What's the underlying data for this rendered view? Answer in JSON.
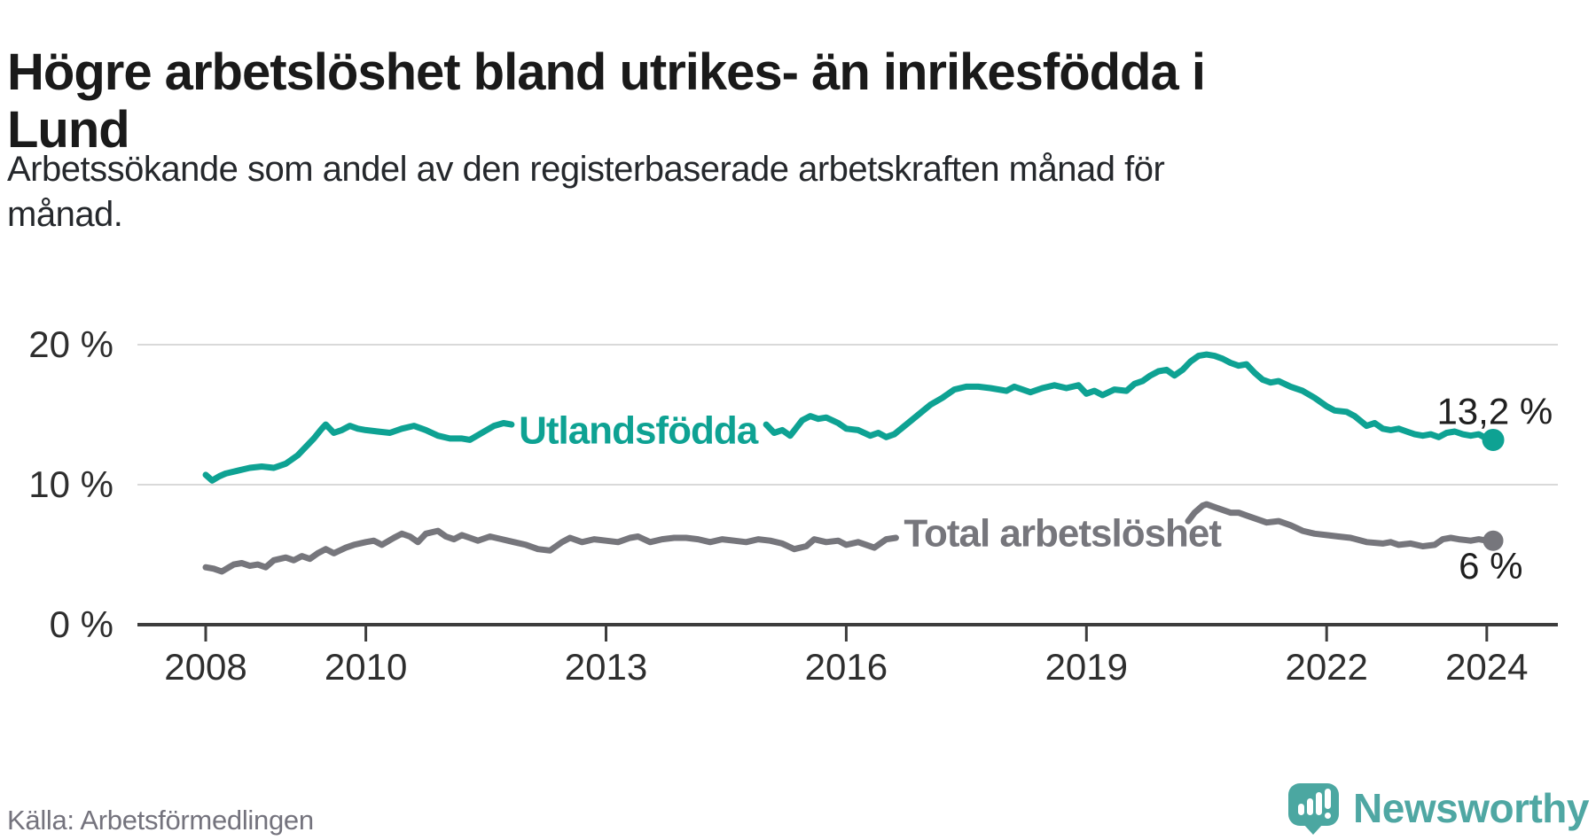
{
  "header": {
    "title_lines": [
      "Högre arbetslöshet bland utrikes- än inrikesfödda i",
      "Lund"
    ],
    "subtitle_lines": [
      "Arbetssökande som andel av den registerbaserade arbetskraften månad för",
      "månad."
    ]
  },
  "chart_data": {
    "type": "line",
    "title": "Högre arbetslöshet bland utrikes- än inrikesfödda i Lund",
    "xlabel": "",
    "ylabel": "Arbetssökande som andel av den registerbaserade arbetskraften",
    "x_unit": "year, monthly observations",
    "x_range": [
      2008.0,
      2024.25
    ],
    "ylim": [
      0,
      21
    ],
    "grid": "horizontal-only",
    "y_ticks": [
      {
        "label": "0 %",
        "value": 0
      },
      {
        "label": "10 %",
        "value": 10
      },
      {
        "label": "20 %",
        "value": 20
      }
    ],
    "x_ticks": [
      {
        "label": "2008",
        "year": 2008
      },
      {
        "label": "2010",
        "year": 2010
      },
      {
        "label": "2013",
        "year": 2013
      },
      {
        "label": "2016",
        "year": 2016
      },
      {
        "label": "2019",
        "year": 2019
      },
      {
        "label": "2022",
        "year": 2022
      },
      {
        "label": "2024",
        "year": 2024
      }
    ],
    "series": [
      {
        "name": "Utlandsfödda",
        "color": "#0ea293",
        "inline_label": {
          "text": "Utlandsfödda",
          "year": 2013.4,
          "value": 13.9
        },
        "end_dot": {
          "year": 2024.08,
          "value": 13.2,
          "radius": 12.5
        },
        "end_label": {
          "text": "13,2 %",
          "year": 2024.1,
          "value": 15.3
        },
        "segments": [
          [
            [
              2008.0,
              10.7
            ],
            [
              2008.08,
              10.3
            ],
            [
              2008.17,
              10.6
            ],
            [
              2008.25,
              10.8
            ],
            [
              2008.4,
              11.0
            ],
            [
              2008.55,
              11.2
            ],
            [
              2008.7,
              11.3
            ],
            [
              2008.85,
              11.2
            ],
            [
              2009.0,
              11.5
            ],
            [
              2009.15,
              12.1
            ],
            [
              2009.25,
              12.7
            ],
            [
              2009.35,
              13.3
            ],
            [
              2009.45,
              14.0
            ],
            [
              2009.5,
              14.3
            ],
            [
              2009.6,
              13.7
            ],
            [
              2009.7,
              13.9
            ],
            [
              2009.8,
              14.2
            ],
            [
              2009.9,
              14.0
            ],
            [
              2010.0,
              13.9
            ],
            [
              2010.15,
              13.8
            ],
            [
              2010.3,
              13.7
            ],
            [
              2010.45,
              14.0
            ],
            [
              2010.6,
              14.2
            ],
            [
              2010.75,
              13.9
            ],
            [
              2010.9,
              13.5
            ],
            [
              2011.05,
              13.3
            ],
            [
              2011.2,
              13.3
            ],
            [
              2011.3,
              13.2
            ],
            [
              2011.45,
              13.7
            ],
            [
              2011.6,
              14.2
            ],
            [
              2011.72,
              14.4
            ],
            [
              2011.82,
              14.3
            ]
          ],
          [
            [
              2015.0,
              14.3
            ],
            [
              2015.1,
              13.7
            ],
            [
              2015.2,
              13.9
            ],
            [
              2015.3,
              13.5
            ],
            [
              2015.45,
              14.6
            ],
            [
              2015.55,
              14.9
            ],
            [
              2015.65,
              14.7
            ],
            [
              2015.75,
              14.8
            ],
            [
              2015.9,
              14.4
            ],
            [
              2016.0,
              14.0
            ],
            [
              2016.15,
              13.9
            ],
            [
              2016.3,
              13.5
            ],
            [
              2016.4,
              13.7
            ],
            [
              2016.5,
              13.4
            ],
            [
              2016.6,
              13.6
            ],
            [
              2016.75,
              14.3
            ],
            [
              2016.9,
              15.0
            ],
            [
              2017.05,
              15.7
            ],
            [
              2017.2,
              16.2
            ],
            [
              2017.35,
              16.8
            ],
            [
              2017.5,
              17.0
            ],
            [
              2017.65,
              17.0
            ],
            [
              2017.8,
              16.9
            ],
            [
              2018.0,
              16.7
            ],
            [
              2018.1,
              17.0
            ],
            [
              2018.3,
              16.6
            ],
            [
              2018.45,
              16.9
            ],
            [
              2018.6,
              17.1
            ],
            [
              2018.75,
              16.9
            ],
            [
              2018.9,
              17.1
            ],
            [
              2019.0,
              16.5
            ],
            [
              2019.1,
              16.7
            ],
            [
              2019.2,
              16.4
            ],
            [
              2019.35,
              16.8
            ],
            [
              2019.5,
              16.7
            ],
            [
              2019.6,
              17.2
            ],
            [
              2019.7,
              17.4
            ],
            [
              2019.8,
              17.8
            ],
            [
              2019.9,
              18.1
            ],
            [
              2020.0,
              18.2
            ],
            [
              2020.1,
              17.8
            ],
            [
              2020.2,
              18.2
            ],
            [
              2020.3,
              18.8
            ],
            [
              2020.4,
              19.2
            ],
            [
              2020.5,
              19.3
            ],
            [
              2020.6,
              19.2
            ],
            [
              2020.7,
              19.0
            ],
            [
              2020.8,
              18.7
            ],
            [
              2020.9,
              18.5
            ],
            [
              2021.0,
              18.6
            ],
            [
              2021.1,
              18.0
            ],
            [
              2021.2,
              17.5
            ],
            [
              2021.3,
              17.3
            ],
            [
              2021.4,
              17.4
            ],
            [
              2021.55,
              17.0
            ],
            [
              2021.7,
              16.7
            ],
            [
              2021.85,
              16.2
            ],
            [
              2022.0,
              15.6
            ],
            [
              2022.1,
              15.3
            ],
            [
              2022.25,
              15.2
            ],
            [
              2022.35,
              14.9
            ],
            [
              2022.5,
              14.2
            ],
            [
              2022.6,
              14.4
            ],
            [
              2022.7,
              14.0
            ],
            [
              2022.8,
              13.9
            ],
            [
              2022.9,
              14.0
            ],
            [
              2023.0,
              13.8
            ],
            [
              2023.1,
              13.6
            ],
            [
              2023.2,
              13.5
            ],
            [
              2023.3,
              13.6
            ],
            [
              2023.4,
              13.4
            ],
            [
              2023.5,
              13.7
            ],
            [
              2023.6,
              13.8
            ],
            [
              2023.7,
              13.6
            ],
            [
              2023.8,
              13.5
            ],
            [
              2023.9,
              13.6
            ],
            [
              2024.0,
              13.3
            ],
            [
              2024.08,
              13.2
            ]
          ]
        ]
      },
      {
        "name": "Total arbetslöshet",
        "color": "#76767c",
        "inline_label": {
          "text": "Total arbetslöshet",
          "year": 2018.7,
          "value": 6.55
        },
        "end_dot": {
          "year": 2024.08,
          "value": 6.0,
          "radius": 11.5
        },
        "end_label": {
          "text": "6 %",
          "year": 2024.05,
          "value": 4.25
        },
        "segments": [
          [
            [
              2008.0,
              4.1
            ],
            [
              2008.1,
              4.0
            ],
            [
              2008.2,
              3.8
            ],
            [
              2008.35,
              4.3
            ],
            [
              2008.45,
              4.4
            ],
            [
              2008.55,
              4.2
            ],
            [
              2008.65,
              4.3
            ],
            [
              2008.75,
              4.1
            ],
            [
              2008.85,
              4.6
            ],
            [
              2009.0,
              4.8
            ],
            [
              2009.1,
              4.6
            ],
            [
              2009.2,
              4.9
            ],
            [
              2009.3,
              4.7
            ],
            [
              2009.4,
              5.1
            ],
            [
              2009.5,
              5.4
            ],
            [
              2009.6,
              5.1
            ],
            [
              2009.75,
              5.5
            ],
            [
              2009.85,
              5.7
            ],
            [
              2010.0,
              5.9
            ],
            [
              2010.1,
              6.0
            ],
            [
              2010.2,
              5.7
            ],
            [
              2010.35,
              6.2
            ],
            [
              2010.45,
              6.5
            ],
            [
              2010.55,
              6.3
            ],
            [
              2010.65,
              5.9
            ],
            [
              2010.75,
              6.5
            ],
            [
              2010.9,
              6.7
            ],
            [
              2011.0,
              6.3
            ],
            [
              2011.1,
              6.1
            ],
            [
              2011.2,
              6.4
            ],
            [
              2011.3,
              6.2
            ],
            [
              2011.4,
              6.0
            ],
            [
              2011.55,
              6.3
            ],
            [
              2011.7,
              6.1
            ],
            [
              2011.85,
              5.9
            ],
            [
              2012.0,
              5.7
            ],
            [
              2012.15,
              5.4
            ],
            [
              2012.3,
              5.3
            ],
            [
              2012.45,
              5.9
            ],
            [
              2012.55,
              6.2
            ],
            [
              2012.7,
              5.9
            ],
            [
              2012.85,
              6.1
            ],
            [
              2013.0,
              6.0
            ],
            [
              2013.15,
              5.9
            ],
            [
              2013.3,
              6.2
            ],
            [
              2013.4,
              6.3
            ],
            [
              2013.55,
              5.9
            ],
            [
              2013.7,
              6.1
            ],
            [
              2013.85,
              6.2
            ],
            [
              2014.0,
              6.2
            ],
            [
              2014.15,
              6.1
            ],
            [
              2014.3,
              5.9
            ],
            [
              2014.45,
              6.1
            ],
            [
              2014.6,
              6.0
            ],
            [
              2014.75,
              5.9
            ],
            [
              2014.9,
              6.1
            ],
            [
              2015.05,
              6.0
            ],
            [
              2015.2,
              5.8
            ],
            [
              2015.35,
              5.4
            ],
            [
              2015.5,
              5.6
            ],
            [
              2015.6,
              6.1
            ],
            [
              2015.75,
              5.9
            ],
            [
              2015.9,
              6.0
            ],
            [
              2016.0,
              5.7
            ],
            [
              2016.15,
              5.9
            ],
            [
              2016.35,
              5.5
            ],
            [
              2016.5,
              6.1
            ],
            [
              2016.62,
              6.2
            ]
          ],
          [
            [
              2020.27,
              7.4
            ],
            [
              2020.35,
              8.0
            ],
            [
              2020.45,
              8.5
            ],
            [
              2020.5,
              8.6
            ],
            [
              2020.6,
              8.4
            ],
            [
              2020.7,
              8.2
            ],
            [
              2020.8,
              8.0
            ],
            [
              2020.9,
              8.0
            ],
            [
              2021.0,
              7.8
            ],
            [
              2021.1,
              7.6
            ],
            [
              2021.25,
              7.3
            ],
            [
              2021.4,
              7.4
            ],
            [
              2021.55,
              7.1
            ],
            [
              2021.7,
              6.7
            ],
            [
              2021.85,
              6.5
            ],
            [
              2022.0,
              6.4
            ],
            [
              2022.15,
              6.3
            ],
            [
              2022.3,
              6.2
            ],
            [
              2022.5,
              5.9
            ],
            [
              2022.7,
              5.8
            ],
            [
              2022.8,
              5.9
            ],
            [
              2022.9,
              5.7
            ],
            [
              2023.05,
              5.8
            ],
            [
              2023.2,
              5.6
            ],
            [
              2023.35,
              5.7
            ],
            [
              2023.45,
              6.1
            ],
            [
              2023.55,
              6.2
            ],
            [
              2023.65,
              6.1
            ],
            [
              2023.8,
              6.0
            ],
            [
              2023.9,
              6.1
            ],
            [
              2024.0,
              6.0
            ],
            [
              2024.08,
              6.0
            ]
          ]
        ]
      }
    ]
  },
  "footer": {
    "source": "Källa: Arbetsförmedlingen",
    "logo_text": "Newsworthy"
  },
  "colors": {
    "teal_series": "#0ea293",
    "gray_series": "#76767c",
    "grid": "#d9d9d9",
    "axis": "#3d3d3d",
    "tick_label": "#2e2e2e",
    "end_label": "#1f1f1f",
    "title": "#1a1a1a",
    "source": "#74737d",
    "logo": "#4ba7a1"
  }
}
